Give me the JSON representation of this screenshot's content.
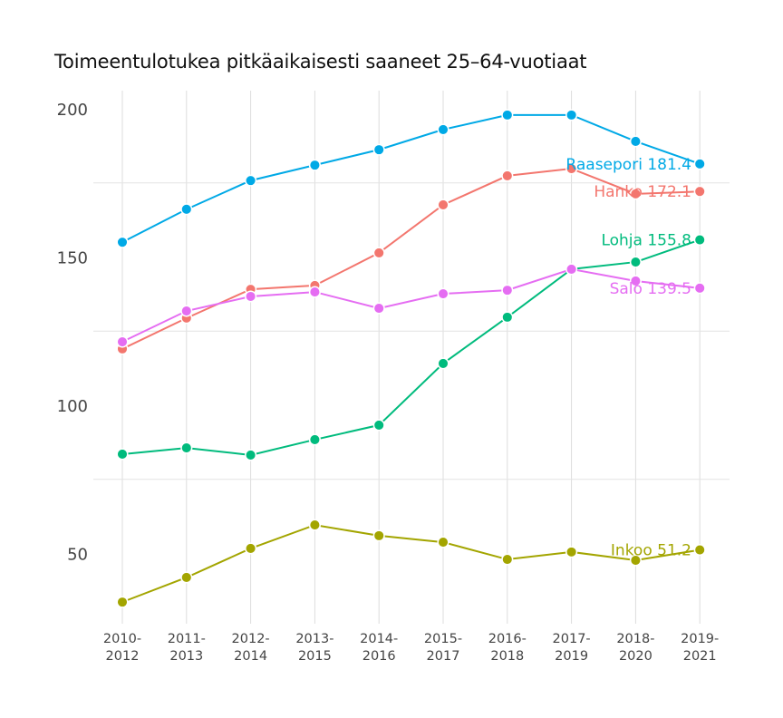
{
  "chart_data": {
    "type": "line",
    "title": "Toimeentulotukea pitkäaikaisesti saaneet 25–64-vuotiaat",
    "xlabel": "",
    "ylabel": "",
    "categories": [
      "2010-2012",
      "2011-2013",
      "2012-2014",
      "2013-2015",
      "2014-2016",
      "2015-2017",
      "2016-2018",
      "2017-2019",
      "2018-2020",
      "2019-2021"
    ],
    "category_lines": [
      [
        "2010-",
        "2012"
      ],
      [
        "2011-",
        "2013"
      ],
      [
        "2012-",
        "2014"
      ],
      [
        "2013-",
        "2015"
      ],
      [
        "2014-",
        "2016"
      ],
      [
        "2015-",
        "2017"
      ],
      [
        "2016-",
        "2018"
      ],
      [
        "2017-",
        "2019"
      ],
      [
        "2018-",
        "2020"
      ],
      [
        "2019-",
        "2021"
      ]
    ],
    "yticks": [
      50,
      100,
      150,
      200
    ],
    "ygrid": [
      75,
      125,
      175
    ],
    "ylim": [
      28,
      203
    ],
    "grid": true,
    "legend": "none (direct end labels)",
    "series": [
      {
        "name": "Raasepori",
        "color": "#00A9E6",
        "values": [
          155.0,
          166.1,
          175.8,
          181.0,
          186.2,
          193.0,
          197.9,
          197.9,
          189.0,
          181.4
        ],
        "end_label": "Raasepori 181.4"
      },
      {
        "name": "Hanko",
        "color": "#F3766E",
        "values": [
          119.0,
          129.4,
          139.1,
          140.4,
          151.4,
          167.6,
          177.4,
          179.8,
          171.3,
          172.1
        ],
        "end_label": "Hanko 172.1"
      },
      {
        "name": "Lohja",
        "color": "#00BB7D",
        "values": [
          83.5,
          85.6,
          83.2,
          88.4,
          93.3,
          114.1,
          129.7,
          145.9,
          148.3,
          155.8
        ],
        "end_label": "Lohja 155.8"
      },
      {
        "name": "Salo",
        "color": "#E56DF2",
        "values": [
          121.4,
          131.8,
          136.7,
          138.2,
          132.7,
          137.6,
          138.8,
          145.9,
          141.9,
          139.5
        ],
        "end_label": "Salo 139.5"
      },
      {
        "name": "Inkoo",
        "color": "#A3A500",
        "values": [
          33.6,
          41.9,
          51.7,
          59.6,
          56.0,
          53.8,
          48.0,
          50.5,
          47.7,
          51.2
        ],
        "end_label": "Inkoo 51.2"
      }
    ]
  }
}
